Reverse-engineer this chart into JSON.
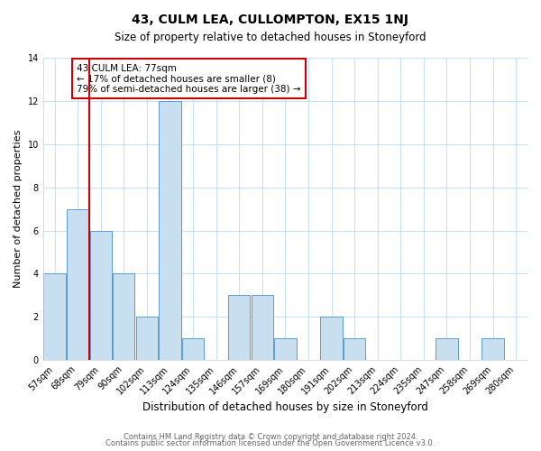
{
  "title_line1": "43, CULM LEA, CULLOMPTON, EX15 1NJ",
  "title_line2": "Size of property relative to detached houses in Stoneyford",
  "xlabel": "Distribution of detached houses by size in Stoneyford",
  "ylabel": "Number of detached properties",
  "footer_line1": "Contains HM Land Registry data © Crown copyright and database right 2024.",
  "footer_line2": "Contains public sector information licensed under the Open Government Licence v3.0.",
  "annotation_line1": "43 CULM LEA: 77sqm",
  "annotation_line2": "← 17% of detached houses are smaller (8)",
  "annotation_line3": "79% of semi-detached houses are larger (38) →",
  "bins": [
    "57sqm",
    "68sqm",
    "79sqm",
    "90sqm",
    "102sqm",
    "113sqm",
    "124sqm",
    "135sqm",
    "146sqm",
    "157sqm",
    "169sqm",
    "180sqm",
    "191sqm",
    "202sqm",
    "213sqm",
    "224sqm",
    "235sqm",
    "247sqm",
    "258sqm",
    "269sqm",
    "280sqm"
  ],
  "values": [
    4,
    7,
    6,
    4,
    2,
    12,
    1,
    0,
    3,
    3,
    1,
    0,
    2,
    1,
    0,
    0,
    0,
    1,
    0,
    1,
    0
  ],
  "bar_color": "#c8dff0",
  "bar_edge_color": "#5b9bd5",
  "grid_color": "#c8dff0",
  "marker_line_color": "#cc0000",
  "marker_bin_index": 2,
  "ylim": [
    0,
    14
  ],
  "yticks": [
    0,
    2,
    4,
    6,
    8,
    10,
    12,
    14
  ],
  "annotation_box_edge": "#cc0000",
  "background_color": "#ffffff",
  "title_fontsize": 10,
  "subtitle_fontsize": 8.5,
  "ylabel_fontsize": 8,
  "xlabel_fontsize": 8.5,
  "tick_fontsize": 7,
  "footer_fontsize": 6,
  "annotation_fontsize": 7.5
}
